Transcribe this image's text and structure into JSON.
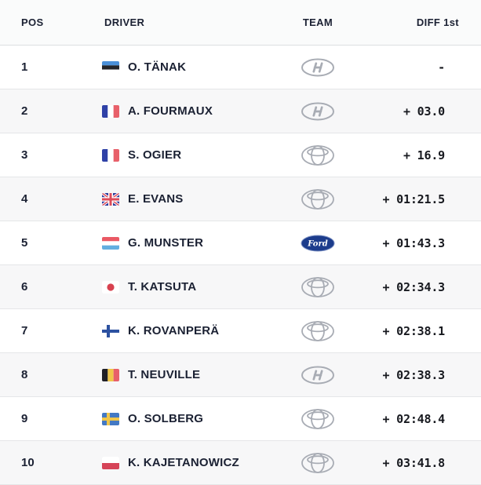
{
  "header": {
    "pos": "POS",
    "driver": "DRIVER",
    "team": "TEAM",
    "diff": "DIFF 1st"
  },
  "colors": {
    "header_bg": "#fafbfb",
    "row_bg": "#ffffff",
    "row_alt_bg": "#f7f7f8",
    "divider": "#e5e6e8",
    "text_dark": "#1b2133",
    "logo_gray": "#a8acb4",
    "ford_blue": "#1c3c8c"
  },
  "icons": {
    "flags": {
      "estonia": {
        "type": "h-stripes",
        "colors": [
          "#4a90d9",
          "#23252a",
          "#ffffff"
        ]
      },
      "france": {
        "type": "v-stripes",
        "colors": [
          "#2f41a7",
          "#ffffff",
          "#e8606a"
        ]
      },
      "uk": {
        "type": "union-jack",
        "blue": "#2b3a9c",
        "red": "#dd4b5a",
        "white": "#ffffff"
      },
      "luxembourg": {
        "type": "h-stripes",
        "colors": [
          "#ea5964",
          "#ffffff",
          "#62aee0"
        ]
      },
      "japan": {
        "type": "disc",
        "bg": "#ffffff",
        "disc": "#d8414f"
      },
      "finland": {
        "type": "nordic-cross",
        "bg": "#ffffff",
        "cross": "#2c51a0"
      },
      "belgium": {
        "type": "v-stripes",
        "colors": [
          "#202027",
          "#f0c64a",
          "#e8606a"
        ]
      },
      "sweden": {
        "type": "nordic-cross",
        "bg": "#4379c4",
        "cross": "#f0c64a"
      },
      "poland": {
        "type": "h-stripes",
        "colors": [
          "#ffffff",
          "#d64458"
        ]
      }
    },
    "teams": {
      "hyundai": {
        "icon": "hyundai-logo",
        "color": "#a8acb4"
      },
      "toyota": {
        "icon": "toyota-logo",
        "color": "#a8acb4"
      },
      "ford": {
        "icon": "ford-logo",
        "color": "#1c3c8c",
        "label": "Ford"
      }
    }
  },
  "rows": [
    {
      "pos": "1",
      "driver": "O. TÄNAK",
      "country": "estonia",
      "team": "hyundai",
      "diff": "-"
    },
    {
      "pos": "2",
      "driver": "A. FOURMAUX",
      "country": "france",
      "team": "hyundai",
      "diff": "+ 03.0"
    },
    {
      "pos": "3",
      "driver": "S. OGIER",
      "country": "france",
      "team": "toyota",
      "diff": "+ 16.9"
    },
    {
      "pos": "4",
      "driver": "E. EVANS",
      "country": "uk",
      "team": "toyota",
      "diff": "+ 01:21.5"
    },
    {
      "pos": "5",
      "driver": "G. MUNSTER",
      "country": "luxembourg",
      "team": "ford",
      "diff": "+ 01:43.3"
    },
    {
      "pos": "6",
      "driver": "T. KATSUTA",
      "country": "japan",
      "team": "toyota",
      "diff": "+ 02:34.3"
    },
    {
      "pos": "7",
      "driver": "K. ROVANPERÄ",
      "country": "finland",
      "team": "toyota",
      "diff": "+ 02:38.1"
    },
    {
      "pos": "8",
      "driver": "T. NEUVILLE",
      "country": "belgium",
      "team": "hyundai",
      "diff": "+ 02:38.3"
    },
    {
      "pos": "9",
      "driver": "O. SOLBERG",
      "country": "sweden",
      "team": "toyota",
      "diff": "+ 02:48.4"
    },
    {
      "pos": "10",
      "driver": "K. KAJETANOWICZ",
      "country": "poland",
      "team": "toyota",
      "diff": "+ 03:41.8"
    }
  ]
}
